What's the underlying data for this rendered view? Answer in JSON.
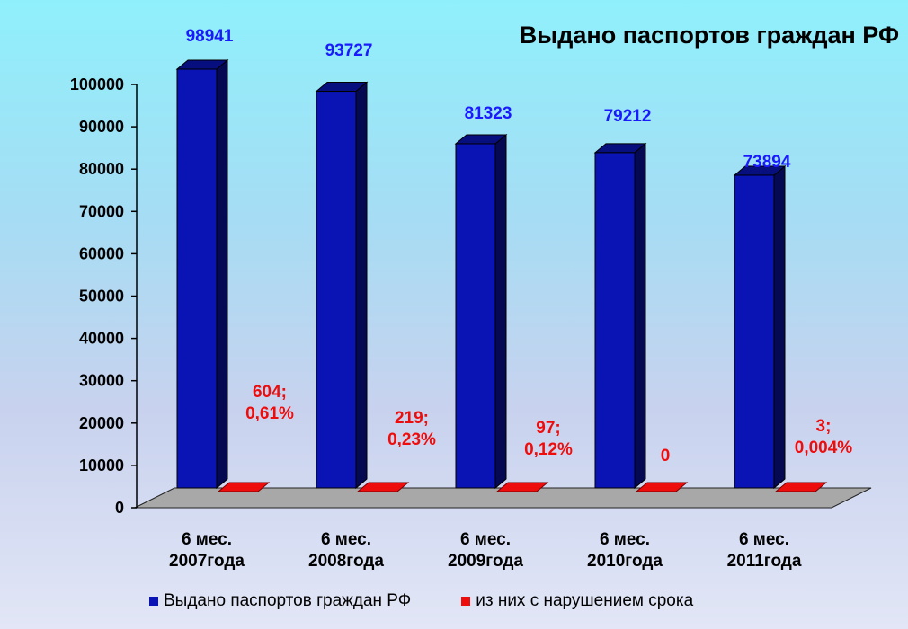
{
  "chart_data": {
    "type": "bar",
    "title": "Выдано паспортов граждан РФ",
    "categories": [
      [
        "6 мес.",
        "2007года"
      ],
      [
        "6 мес.",
        "2008года"
      ],
      [
        "6 мес.",
        "2009года"
      ],
      [
        "6 мес.",
        "2010года"
      ],
      [
        "6 мес.",
        "2011года"
      ]
    ],
    "series": [
      {
        "name": "Выдано паспортов граждан РФ",
        "color": "#0a14b4",
        "values": [
          98941,
          93727,
          81323,
          79212,
          73894
        ],
        "labels": [
          [
            "98941"
          ],
          [
            "93727"
          ],
          [
            "81323"
          ],
          [
            "79212"
          ],
          [
            "73894"
          ]
        ]
      },
      {
        "name": "из них с нарушением срока",
        "color": "#ee0d0d",
        "values": [
          604,
          219,
          97,
          0,
          3
        ],
        "labels": [
          [
            "604;",
            "0,61%"
          ],
          [
            "219;",
            "0,23%"
          ],
          [
            "97;",
            "0,12%"
          ],
          [
            "0"
          ],
          [
            "3;",
            "0,004%"
          ]
        ]
      }
    ],
    "ylim": [
      0,
      100000
    ],
    "yticks": [
      0,
      10000,
      20000,
      30000,
      40000,
      50000,
      60000,
      70000,
      80000,
      90000,
      100000
    ],
    "ytick_labels": [
      "0",
      "10000",
      "20000",
      "30000",
      "40000",
      "50000",
      "60000",
      "70000",
      "80000",
      "90000",
      "100000"
    ],
    "grid": false,
    "legend": "bottom",
    "three_d": true
  }
}
